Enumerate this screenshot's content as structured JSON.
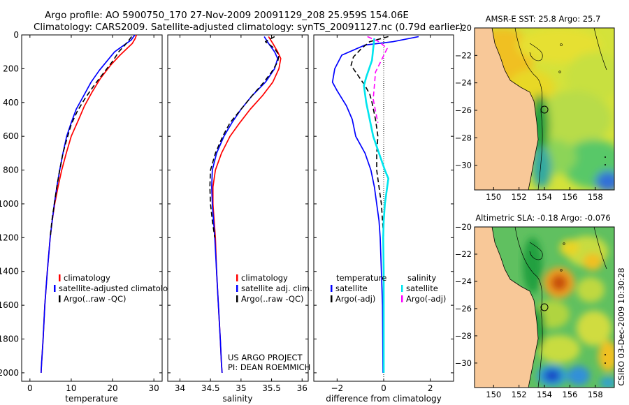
{
  "header": {
    "line1": "Argo profile: AO 5900750_170 27-Nov-2009 20091129_208 25.959S 154.06E",
    "line2": "Climatology: CARS2009. Satellite-adjusted climatology: synTS_20091127.nc (0.79d earlier)"
  },
  "footer_vertical": "CSIRO 03-Dec-2009 10:30:28",
  "project_note": [
    "US ARGO PROJECT",
    "PI: DEAN ROEMMICH"
  ],
  "colors": {
    "climatology": "#ff0000",
    "satellite": "#0000ff",
    "argo": "#000000",
    "salinity_satellite": "#00e5ee",
    "salinity_argo": "#ff00ff",
    "land": "#f8c898",
    "dotted": "#000000"
  },
  "chart_data": [
    {
      "type": "line",
      "id": "temperature",
      "xlabel": "temperature",
      "ylabel": "",
      "xlim": [
        -2,
        32
      ],
      "ylim": [
        2050,
        0
      ],
      "xticks": [
        0,
        10,
        20,
        30
      ],
      "yticks": [
        0,
        200,
        400,
        600,
        800,
        1000,
        1200,
        1400,
        1600,
        1800,
        2000
      ],
      "legend": {
        "placement": "lower-left",
        "entries": [
          "climatology",
          "satellite-adjusted climatology",
          "Argo(..raw -QC)"
        ]
      },
      "series": [
        {
          "name": "climatology",
          "style": "solid",
          "color": "#ff0000",
          "points": [
            [
              25.8,
              0
            ],
            [
              25.5,
              20
            ],
            [
              24.8,
              50
            ],
            [
              23.5,
              80
            ],
            [
              21.8,
              120
            ],
            [
              19.5,
              180
            ],
            [
              17.0,
              260
            ],
            [
              15.0,
              340
            ],
            [
              13.2,
              420
            ],
            [
              11.8,
              500
            ],
            [
              10.0,
              600
            ],
            [
              8.8,
              700
            ],
            [
              7.7,
              800
            ],
            [
              6.8,
              900
            ],
            [
              6.0,
              1000
            ],
            [
              5.4,
              1100
            ],
            [
              4.9,
              1200
            ],
            [
              4.2,
              1400
            ],
            [
              3.6,
              1600
            ],
            [
              3.2,
              1800
            ],
            [
              2.8,
              1950
            ],
            [
              2.7,
              2000
            ]
          ]
        },
        {
          "name": "satellite-adjusted climatology",
          "style": "solid",
          "color": "#0000ff",
          "points": [
            [
              25.4,
              0
            ],
            [
              24.5,
              30
            ],
            [
              22.8,
              60
            ],
            [
              20.5,
              100
            ],
            [
              18.8,
              150
            ],
            [
              16.8,
              210
            ],
            [
              14.8,
              280
            ],
            [
              13.0,
              360
            ],
            [
              11.2,
              440
            ],
            [
              10.0,
              520
            ],
            [
              8.9,
              600
            ],
            [
              8.0,
              700
            ],
            [
              7.2,
              800
            ],
            [
              6.5,
              900
            ],
            [
              5.9,
              1000
            ],
            [
              5.4,
              1100
            ],
            [
              4.9,
              1200
            ],
            [
              4.2,
              1400
            ],
            [
              3.6,
              1600
            ],
            [
              3.2,
              1800
            ],
            [
              2.8,
              1950
            ],
            [
              2.7,
              2000
            ]
          ]
        },
        {
          "name": "Argo(..raw -QC)",
          "style": "dashed",
          "color": "#000000",
          "points": [
            [
              24.6,
              10
            ],
            [
              24.0,
              30
            ],
            [
              23.0,
              60
            ],
            [
              21.5,
              100
            ],
            [
              20.2,
              150
            ],
            [
              18.0,
              220
            ],
            [
              15.8,
              290
            ],
            [
              13.5,
              370
            ],
            [
              11.5,
              450
            ],
            [
              10.0,
              530
            ],
            [
              8.9,
              620
            ],
            [
              8.0,
              700
            ],
            [
              7.2,
              800
            ],
            [
              6.5,
              900
            ],
            [
              5.9,
              1000
            ],
            [
              5.3,
              1100
            ],
            [
              4.9,
              1200
            ]
          ]
        }
      ]
    },
    {
      "type": "line",
      "id": "salinity",
      "xlabel": "salinity",
      "ylabel": "",
      "xlim": [
        33.8,
        36.1
      ],
      "ylim": [
        2050,
        0
      ],
      "xticks": [
        34,
        34.5,
        35,
        35.5,
        36
      ],
      "yticks": [
        0,
        200,
        400,
        600,
        800,
        1000,
        1200,
        1400,
        1600,
        1800,
        2000
      ],
      "legend": {
        "placement": "lower-right",
        "entries": [
          "climatology",
          "satellite adj. clim.",
          "Argo(..raw -QC)"
        ]
      },
      "series": [
        {
          "name": "climatology",
          "style": "solid",
          "color": "#ff0000",
          "points": [
            [
              35.45,
              10
            ],
            [
              35.52,
              50
            ],
            [
              35.6,
              100
            ],
            [
              35.65,
              140
            ],
            [
              35.62,
              200
            ],
            [
              35.52,
              280
            ],
            [
              35.35,
              360
            ],
            [
              35.15,
              440
            ],
            [
              34.98,
              520
            ],
            [
              34.82,
              600
            ],
            [
              34.68,
              700
            ],
            [
              34.58,
              800
            ],
            [
              34.54,
              900
            ],
            [
              34.54,
              1000
            ],
            [
              34.56,
              1100
            ],
            [
              34.58,
              1200
            ],
            [
              34.6,
              1400
            ],
            [
              34.63,
              1600
            ],
            [
              34.66,
              1800
            ],
            [
              34.68,
              1950
            ],
            [
              34.69,
              2000
            ]
          ]
        },
        {
          "name": "satellite adj. clim.",
          "style": "solid",
          "color": "#0000ff",
          "points": [
            [
              35.38,
              10
            ],
            [
              35.45,
              50
            ],
            [
              35.55,
              100
            ],
            [
              35.6,
              140
            ],
            [
              35.55,
              200
            ],
            [
              35.4,
              280
            ],
            [
              35.18,
              360
            ],
            [
              35.0,
              440
            ],
            [
              34.85,
              520
            ],
            [
              34.72,
              600
            ],
            [
              34.6,
              700
            ],
            [
              34.53,
              800
            ],
            [
              34.52,
              900
            ],
            [
              34.53,
              1000
            ],
            [
              34.55,
              1100
            ],
            [
              34.57,
              1200
            ],
            [
              34.6,
              1400
            ],
            [
              34.63,
              1600
            ],
            [
              34.66,
              1800
            ],
            [
              34.68,
              1950
            ],
            [
              34.69,
              2000
            ]
          ]
        },
        {
          "name": "Argo(..raw -QC)",
          "style": "dashed",
          "color": "#000000",
          "points": [
            [
              35.55,
              10
            ],
            [
              35.4,
              40
            ],
            [
              35.55,
              80
            ],
            [
              35.62,
              120
            ],
            [
              35.6,
              160
            ],
            [
              35.5,
              220
            ],
            [
              35.35,
              290
            ],
            [
              35.18,
              360
            ],
            [
              35.0,
              440
            ],
            [
              34.82,
              520
            ],
            [
              34.7,
              600
            ],
            [
              34.58,
              700
            ],
            [
              34.5,
              800
            ],
            [
              34.49,
              900
            ],
            [
              34.5,
              1000
            ],
            [
              34.53,
              1100
            ],
            [
              34.57,
              1200
            ]
          ]
        }
      ]
    },
    {
      "type": "line",
      "id": "difference",
      "xlabel": "difference from climatology",
      "ylabel": "",
      "xlim": [
        -3,
        3
      ],
      "ylim": [
        2050,
        0
      ],
      "xticks": [
        -2,
        0,
        2
      ],
      "yticks": [
        0,
        200,
        400,
        600,
        800,
        1000,
        1200,
        1400,
        1600,
        1800,
        2000
      ],
      "legend": {
        "placement": "lower-center",
        "entries": [
          "temperature",
          "satellite",
          "Argo(-adj)",
          "salinity",
          "satellite",
          "Argo(-adj)"
        ]
      },
      "series": [
        {
          "name": "temperature satellite",
          "style": "solid",
          "color": "#0000ff",
          "points": [
            [
              1.5,
              10
            ],
            [
              0.4,
              40
            ],
            [
              -0.8,
              60
            ],
            [
              -1.8,
              120
            ],
            [
              -2.1,
              200
            ],
            [
              -2.2,
              280
            ],
            [
              -2.0,
              330
            ],
            [
              -1.6,
              420
            ],
            [
              -1.35,
              500
            ],
            [
              -1.2,
              600
            ],
            [
              -0.8,
              700
            ],
            [
              -0.55,
              800
            ],
            [
              -0.4,
              900
            ],
            [
              -0.3,
              1000
            ],
            [
              -0.2,
              1100
            ],
            [
              -0.15,
              1200
            ],
            [
              -0.1,
              1400
            ],
            [
              -0.05,
              1600
            ],
            [
              -0.04,
              1800
            ],
            [
              -0.03,
              2000
            ]
          ]
        },
        {
          "name": "temperature Argo(-adj)",
          "style": "dashed",
          "color": "#000000",
          "points": [
            [
              0.2,
              10
            ],
            [
              -0.6,
              40
            ],
            [
              -0.95,
              80
            ],
            [
              -1.3,
              130
            ],
            [
              -1.4,
              180
            ],
            [
              -1.1,
              240
            ],
            [
              -0.8,
              300
            ],
            [
              -0.6,
              350
            ],
            [
              -0.5,
              400
            ],
            [
              -0.35,
              500
            ],
            [
              -0.25,
              600
            ],
            [
              -0.3,
              700
            ],
            [
              -0.3,
              800
            ],
            [
              -0.2,
              900
            ],
            [
              -0.1,
              1000
            ],
            [
              -0.05,
              1100
            ],
            [
              0.0,
              1200
            ]
          ]
        },
        {
          "name": "salinity satellite",
          "style": "solid",
          "color": "#00e5ee",
          "points": [
            [
              -0.4,
              20
            ],
            [
              -0.45,
              80
            ],
            [
              -0.5,
              150
            ],
            [
              -0.75,
              250
            ],
            [
              -0.85,
              300
            ],
            [
              -0.75,
              400
            ],
            [
              -0.6,
              500
            ],
            [
              -0.45,
              600
            ],
            [
              -0.2,
              700
            ],
            [
              0.05,
              800
            ],
            [
              0.2,
              850
            ],
            [
              0.15,
              900
            ],
            [
              0.05,
              1000
            ],
            [
              0.0,
              1100
            ],
            [
              -0.02,
              1200
            ],
            [
              0.0,
              1400
            ],
            [
              0.0,
              1600
            ],
            [
              0.0,
              1800
            ],
            [
              0.0,
              2000
            ]
          ]
        },
        {
          "name": "salinity Argo(-adj)",
          "style": "dashed",
          "color": "#ff00ff",
          "points": [
            [
              -0.7,
              10
            ],
            [
              -0.2,
              40
            ],
            [
              0.15,
              80
            ],
            [
              -0.1,
              150
            ],
            [
              -0.35,
              220
            ],
            [
              -0.4,
              300
            ],
            [
              -0.45,
              380
            ],
            [
              -0.35,
              450
            ],
            [
              -0.25,
              520
            ]
          ]
        }
      ]
    },
    {
      "type": "heatmap",
      "id": "sst_map",
      "title": "AMSR-E SST: 25.8  Argo: 25.7",
      "xlim": [
        148.5,
        159.5
      ],
      "ylim": [
        -31.8,
        -20
      ],
      "xticks": [
        150,
        152,
        154,
        156,
        158
      ],
      "yticks": [
        -20,
        -22,
        -24,
        -26,
        -28,
        -30
      ],
      "argo_position": [
        154.06,
        -25.959
      ]
    },
    {
      "type": "heatmap",
      "id": "sla_map",
      "title": "Altimetric SLA: -0.18  Argo: -0.076",
      "xlim": [
        148.5,
        159.5
      ],
      "ylim": [
        -31.8,
        -20
      ],
      "xticks": [
        150,
        152,
        154,
        156,
        158
      ],
      "yticks": [
        -20,
        -22,
        -24,
        -26,
        -28,
        -30
      ],
      "argo_position": [
        154.06,
        -25.959
      ]
    }
  ]
}
